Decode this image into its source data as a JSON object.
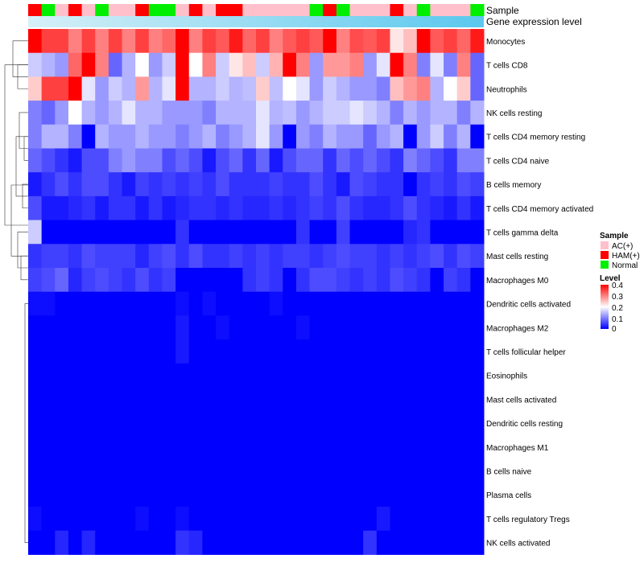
{
  "chart_data": {
    "type": "heatmap",
    "title": "",
    "annotation_track_labels": [
      "Sample",
      "Gene expression level"
    ],
    "rows": [
      "Monocytes",
      "T cells CD8",
      "Neutrophils",
      "NK cells resting",
      "T cells CD4 memory resting",
      "T cells CD4 naive",
      "B cells memory",
      "T cells CD4 memory activated",
      "T cells gamma delta",
      "Mast cells resting",
      "Macrophages M0",
      "Dendritic cells activated",
      "Macrophages M2",
      "T cells follicular helper",
      "Eosinophils",
      "Mast cells activated",
      "Dendritic cells resting",
      "Macrophages M1",
      "B cells naive",
      "Plasma cells",
      "T cells regulatory  Tregs",
      "NK cells activated"
    ],
    "sample_groups": [
      "HAM(+)",
      "Normal",
      "AC(+)",
      "HAM(+)",
      "AC(+)",
      "Normal",
      "AC(+)",
      "AC(+)",
      "HAM(+)",
      "Normal",
      "Normal",
      "AC(+)",
      "HAM(+)",
      "AC(+)",
      "HAM(+)",
      "HAM(+)",
      "AC(+)",
      "AC(+)",
      "AC(+)",
      "AC(+)",
      "AC(+)",
      "Normal",
      "HAM(+)",
      "Normal",
      "AC(+)",
      "AC(+)",
      "AC(+)",
      "HAM(+)",
      "AC(+)",
      "Normal",
      "AC(+)",
      "AC(+)",
      "AC(+)",
      "Normal"
    ],
    "values": [
      [
        0.4,
        0.35,
        0.35,
        0.3,
        0.35,
        0.3,
        0.35,
        0.3,
        0.35,
        0.3,
        0.32,
        0.4,
        0.3,
        0.35,
        0.33,
        0.38,
        0.32,
        0.35,
        0.3,
        0.33,
        0.35,
        0.33,
        0.4,
        0.3,
        0.34,
        0.33,
        0.35,
        0.22,
        0.25,
        0.4,
        0.33,
        0.35,
        0.32,
        0.38
      ],
      [
        0.16,
        0.14,
        0.12,
        0.32,
        0.4,
        0.3,
        0.08,
        0.14,
        0.2,
        0.12,
        0.16,
        0.4,
        0.2,
        0.3,
        0.16,
        0.22,
        0.25,
        0.16,
        0.26,
        0.4,
        0.3,
        0.12,
        0.28,
        0.28,
        0.3,
        0.12,
        0.18,
        0.4,
        0.3,
        0.1,
        0.18,
        0.1,
        0.3,
        0.08
      ],
      [
        0.24,
        0.35,
        0.35,
        0.4,
        0.18,
        0.12,
        0.16,
        0.14,
        0.28,
        0.14,
        0.18,
        0.4,
        0.14,
        0.14,
        0.16,
        0.14,
        0.15,
        0.24,
        0.15,
        0.2,
        0.18,
        0.12,
        0.16,
        0.14,
        0.12,
        0.12,
        0.1,
        0.25,
        0.28,
        0.3,
        0.14,
        0.2,
        0.24,
        0.08
      ],
      [
        0.1,
        0.08,
        0.12,
        0.2,
        0.14,
        0.12,
        0.14,
        0.18,
        0.14,
        0.14,
        0.12,
        0.12,
        0.12,
        0.1,
        0.14,
        0.14,
        0.14,
        0.18,
        0.14,
        0.15,
        0.12,
        0.14,
        0.16,
        0.16,
        0.18,
        0.16,
        0.14,
        0.1,
        0.14,
        0.12,
        0.14,
        0.14,
        0.1,
        0.14
      ],
      [
        0.1,
        0.14,
        0.14,
        0.1,
        0.0,
        0.14,
        0.12,
        0.12,
        0.14,
        0.12,
        0.12,
        0.1,
        0.12,
        0.14,
        0.1,
        0.12,
        0.14,
        0.18,
        0.12,
        0.0,
        0.12,
        0.1,
        0.14,
        0.12,
        0.12,
        0.08,
        0.12,
        0.14,
        0.0,
        0.12,
        0.16,
        0.1,
        0.14,
        0.0
      ],
      [
        0.08,
        0.06,
        0.04,
        0.02,
        0.06,
        0.06,
        0.1,
        0.12,
        0.1,
        0.1,
        0.06,
        0.08,
        0.06,
        0.02,
        0.06,
        0.08,
        0.04,
        0.08,
        0.02,
        0.06,
        0.08,
        0.08,
        0.04,
        0.08,
        0.06,
        0.08,
        0.06,
        0.04,
        0.1,
        0.08,
        0.06,
        0.04,
        0.1,
        0.1
      ],
      [
        0.02,
        0.04,
        0.06,
        0.04,
        0.06,
        0.06,
        0.04,
        0.02,
        0.05,
        0.04,
        0.05,
        0.04,
        0.05,
        0.04,
        0.06,
        0.04,
        0.04,
        0.04,
        0.05,
        0.04,
        0.04,
        0.06,
        0.04,
        0.02,
        0.06,
        0.05,
        0.04,
        0.04,
        0.0,
        0.04,
        0.05,
        0.04,
        0.06,
        0.05
      ],
      [
        0.06,
        0.02,
        0.02,
        0.03,
        0.04,
        0.02,
        0.04,
        0.04,
        0.02,
        0.04,
        0.02,
        0.03,
        0.04,
        0.04,
        0.03,
        0.04,
        0.03,
        0.03,
        0.04,
        0.03,
        0.04,
        0.05,
        0.04,
        0.06,
        0.04,
        0.03,
        0.03,
        0.04,
        0.06,
        0.04,
        0.03,
        0.02,
        0.04,
        0.02
      ],
      [
        0.16,
        0.0,
        0.0,
        0.0,
        0.0,
        0.0,
        0.0,
        0.0,
        0.0,
        0.0,
        0.0,
        0.04,
        0.0,
        0.0,
        0.0,
        0.0,
        0.0,
        0.0,
        0.0,
        0.0,
        0.04,
        0.0,
        0.0,
        0.05,
        0.0,
        0.0,
        0.0,
        0.0,
        0.03,
        0.04,
        0.0,
        0.0,
        0.0,
        0.0
      ],
      [
        0.04,
        0.05,
        0.05,
        0.04,
        0.06,
        0.05,
        0.05,
        0.05,
        0.03,
        0.05,
        0.06,
        0.04,
        0.06,
        0.04,
        0.04,
        0.05,
        0.04,
        0.05,
        0.04,
        0.05,
        0.05,
        0.04,
        0.05,
        0.06,
        0.05,
        0.05,
        0.04,
        0.05,
        0.04,
        0.05,
        0.06,
        0.04,
        0.06,
        0.05
      ],
      [
        0.05,
        0.06,
        0.08,
        0.03,
        0.05,
        0.06,
        0.05,
        0.04,
        0.06,
        0.04,
        0.05,
        0.0,
        0.0,
        0.0,
        0.0,
        0.0,
        0.04,
        0.05,
        0.04,
        0.0,
        0.04,
        0.06,
        0.06,
        0.05,
        0.04,
        0.05,
        0.04,
        0.06,
        0.05,
        0.04,
        0.0,
        0.05,
        0.04,
        0.0
      ],
      [
        0.01,
        0.01,
        0.0,
        0.0,
        0.0,
        0.0,
        0.0,
        0.0,
        0.0,
        0.0,
        0.0,
        0.01,
        0.0,
        0.01,
        0.0,
        0.0,
        0.0,
        0.0,
        0.01,
        0.0,
        0.0,
        0.0,
        0.0,
        0.0,
        0.0,
        0.0,
        0.0,
        0.0,
        0.0,
        0.0,
        0.0,
        0.0,
        0.0,
        0.0
      ],
      [
        0.0,
        0.0,
        0.0,
        0.0,
        0.0,
        0.0,
        0.0,
        0.0,
        0.0,
        0.0,
        0.0,
        0.02,
        0.0,
        0.0,
        0.01,
        0.0,
        0.0,
        0.0,
        0.0,
        0.0,
        0.01,
        0.0,
        0.0,
        0.0,
        0.0,
        0.0,
        0.0,
        0.0,
        0.0,
        0.0,
        0.0,
        0.0,
        0.0,
        0.0
      ],
      [
        0.0,
        0.0,
        0.0,
        0.0,
        0.0,
        0.0,
        0.0,
        0.0,
        0.0,
        0.0,
        0.0,
        0.02,
        0.0,
        0.0,
        0.0,
        0.0,
        0.0,
        0.0,
        0.0,
        0.0,
        0.0,
        0.0,
        0.0,
        0.0,
        0.0,
        0.0,
        0.0,
        0.0,
        0.0,
        0.0,
        0.0,
        0.0,
        0.0,
        0.0
      ],
      [
        0.0,
        0.0,
        0.0,
        0.0,
        0.0,
        0.0,
        0.0,
        0.0,
        0.0,
        0.0,
        0.0,
        0.0,
        0.0,
        0.0,
        0.0,
        0.0,
        0.0,
        0.0,
        0.0,
        0.0,
        0.0,
        0.0,
        0.0,
        0.0,
        0.0,
        0.0,
        0.0,
        0.0,
        0.0,
        0.0,
        0.0,
        0.0,
        0.0,
        0.0
      ],
      [
        0.0,
        0.0,
        0.0,
        0.0,
        0.0,
        0.0,
        0.0,
        0.0,
        0.0,
        0.0,
        0.0,
        0.0,
        0.0,
        0.0,
        0.0,
        0.0,
        0.0,
        0.0,
        0.0,
        0.0,
        0.0,
        0.0,
        0.0,
        0.0,
        0.0,
        0.0,
        0.0,
        0.0,
        0.0,
        0.0,
        0.0,
        0.0,
        0.0,
        0.0
      ],
      [
        0.0,
        0.0,
        0.0,
        0.0,
        0.0,
        0.0,
        0.0,
        0.0,
        0.0,
        0.0,
        0.0,
        0.0,
        0.0,
        0.0,
        0.0,
        0.0,
        0.0,
        0.0,
        0.0,
        0.0,
        0.0,
        0.0,
        0.0,
        0.0,
        0.0,
        0.0,
        0.0,
        0.0,
        0.0,
        0.0,
        0.0,
        0.0,
        0.0,
        0.0
      ],
      [
        0.0,
        0.0,
        0.0,
        0.0,
        0.0,
        0.0,
        0.0,
        0.0,
        0.0,
        0.0,
        0.0,
        0.0,
        0.0,
        0.0,
        0.0,
        0.0,
        0.0,
        0.0,
        0.0,
        0.0,
        0.0,
        0.0,
        0.0,
        0.0,
        0.0,
        0.0,
        0.0,
        0.0,
        0.0,
        0.0,
        0.0,
        0.0,
        0.0,
        0.0
      ],
      [
        0.0,
        0.0,
        0.0,
        0.0,
        0.0,
        0.0,
        0.0,
        0.0,
        0.0,
        0.0,
        0.0,
        0.0,
        0.0,
        0.0,
        0.0,
        0.0,
        0.0,
        0.0,
        0.0,
        0.0,
        0.0,
        0.0,
        0.0,
        0.0,
        0.0,
        0.0,
        0.0,
        0.0,
        0.0,
        0.0,
        0.0,
        0.0,
        0.0,
        0.0
      ],
      [
        0.0,
        0.0,
        0.0,
        0.0,
        0.0,
        0.0,
        0.0,
        0.0,
        0.0,
        0.0,
        0.0,
        0.0,
        0.0,
        0.0,
        0.0,
        0.0,
        0.0,
        0.0,
        0.0,
        0.0,
        0.0,
        0.0,
        0.0,
        0.0,
        0.0,
        0.0,
        0.0,
        0.0,
        0.0,
        0.0,
        0.0,
        0.0,
        0.0,
        0.0
      ],
      [
        0.01,
        0.0,
        0.0,
        0.0,
        0.0,
        0.0,
        0.0,
        0.0,
        0.01,
        0.0,
        0.0,
        0.01,
        0.0,
        0.0,
        0.0,
        0.0,
        0.0,
        0.0,
        0.0,
        0.0,
        0.0,
        0.0,
        0.0,
        0.0,
        0.0,
        0.0,
        0.02,
        0.0,
        0.0,
        0.0,
        0.0,
        0.0,
        0.0,
        0.0
      ],
      [
        0.0,
        0.0,
        0.03,
        0.0,
        0.03,
        0.0,
        0.0,
        0.0,
        0.0,
        0.0,
        0.0,
        0.04,
        0.03,
        0.0,
        0.0,
        0.0,
        0.0,
        0.0,
        0.0,
        0.0,
        0.0,
        0.0,
        0.0,
        0.0,
        0.0,
        0.04,
        0.0,
        0.0,
        0.0,
        0.0,
        0.0,
        0.0,
        0.0,
        0.0
      ]
    ],
    "legend_sample": {
      "title": "Sample",
      "items": [
        {
          "label": "AC(+)",
          "color": "#ffc0cb"
        },
        {
          "label": "HAM(+)",
          "color": "#ff0000"
        },
        {
          "label": "Normal",
          "color": "#00ee00"
        }
      ]
    },
    "legend_level": {
      "title": "Level",
      "ticks": [
        "0.4",
        "0.3",
        "0.2",
        "0.1",
        "0"
      ],
      "range": [
        0,
        0.4
      ]
    },
    "gene_expression_bar_colors": [
      "#d6f0f8",
      "#5bc8ee"
    ],
    "colormap": {
      "low": "#0000ff",
      "mid": "#ffffff",
      "high": "#ff0000",
      "mid_value": 0.2
    }
  }
}
